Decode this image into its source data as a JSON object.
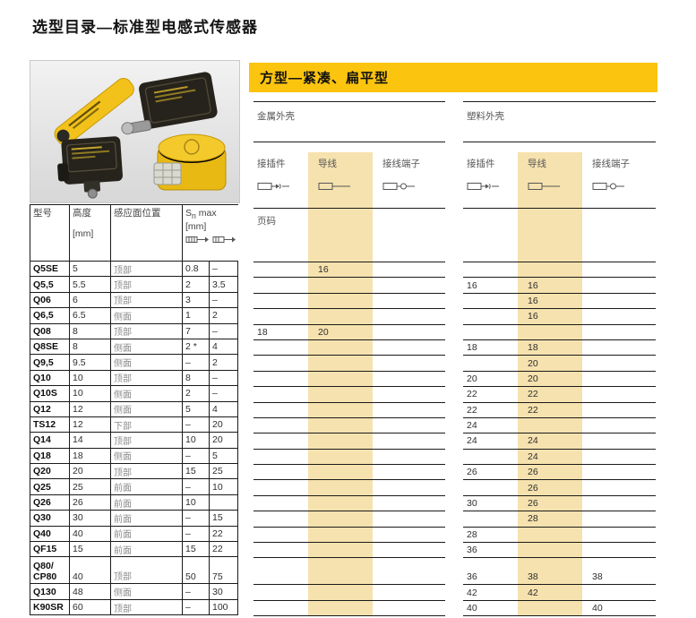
{
  "page": {
    "title": "选型目录—标准型电感式传感器"
  },
  "banner": {
    "title": "方型—紧凑、扁平型"
  },
  "photo": {
    "caption": "standard-inductive-sensors-photo"
  },
  "colors": {
    "banner_yellow": "#fbc40f",
    "band_yellow": "#f6e2ae",
    "rule_black": "#1a1a1a"
  },
  "left_table": {
    "headers": {
      "model": "型号",
      "height": "高度",
      "height_unit": "[mm]",
      "face": "感应面位置",
      "sn_prefix": "S",
      "sn_sub": "n",
      "sn_suffix": " max",
      "sn_unit": "[mm]"
    }
  },
  "right_table": {
    "metal_label": "金属外壳",
    "plastic_label": "塑料外壳",
    "page_label": "页码",
    "columns": {
      "connector": "接插件",
      "cable": "导线",
      "terminal": "接线端子"
    }
  },
  "rows": [
    {
      "model": "Q5SE",
      "height": "5",
      "face": "顶部",
      "sn1": "0.8",
      "sn2": "–",
      "m_conn": "",
      "m_cable": "16",
      "m_term": "",
      "p_conn": "",
      "p_cable": "",
      "p_term": ""
    },
    {
      "model": "Q5,5",
      "height": "5.5",
      "face": "顶部",
      "sn1": "2",
      "sn2": "3.5",
      "m_conn": "",
      "m_cable": "",
      "m_term": "",
      "p_conn": "16",
      "p_cable": "16",
      "p_term": ""
    },
    {
      "model": "Q06",
      "height": "6",
      "face": "顶部",
      "sn1": "3",
      "sn2": "–",
      "m_conn": "",
      "m_cable": "",
      "m_term": "",
      "p_conn": "",
      "p_cable": "16",
      "p_term": ""
    },
    {
      "model": "Q6,5",
      "height": "6.5",
      "face": "侧面",
      "sn1": "1",
      "sn2": "2",
      "m_conn": "",
      "m_cable": "",
      "m_term": "",
      "p_conn": "",
      "p_cable": "16",
      "p_term": ""
    },
    {
      "model": "Q08",
      "height": "8",
      "face": "顶部",
      "sn1": "7",
      "sn2": "–",
      "m_conn": "18",
      "m_cable": "20",
      "m_term": "",
      "p_conn": "",
      "p_cable": "",
      "p_term": ""
    },
    {
      "model": "Q8SE",
      "height": "8",
      "face": "侧面",
      "sn1": "2 *",
      "sn2": "4",
      "m_conn": "",
      "m_cable": "",
      "m_term": "",
      "p_conn": "18",
      "p_cable": "18",
      "p_term": ""
    },
    {
      "model": "Q9,5",
      "height": "9.5",
      "face": "侧面",
      "sn1": "–",
      "sn2": "2",
      "m_conn": "",
      "m_cable": "",
      "m_term": "",
      "p_conn": "",
      "p_cable": "20",
      "p_term": ""
    },
    {
      "model": "Q10",
      "height": "10",
      "face": "顶部",
      "sn1": "8",
      "sn2": "–",
      "m_conn": "",
      "m_cable": "",
      "m_term": "",
      "p_conn": "20",
      "p_cable": "20",
      "p_term": ""
    },
    {
      "model": "Q10S",
      "height": "10",
      "face": "侧面",
      "sn1": "2",
      "sn2": "–",
      "m_conn": "",
      "m_cable": "",
      "m_term": "",
      "p_conn": "22",
      "p_cable": "22",
      "p_term": ""
    },
    {
      "model": "Q12",
      "height": "12",
      "face": "侧面",
      "sn1": "5",
      "sn2": "4",
      "m_conn": "",
      "m_cable": "",
      "m_term": "",
      "p_conn": "22",
      "p_cable": "22",
      "p_term": ""
    },
    {
      "model": "TS12",
      "height": "12",
      "face": "下部",
      "sn1": "–",
      "sn2": "20",
      "m_conn": "",
      "m_cable": "",
      "m_term": "",
      "p_conn": "24",
      "p_cable": "",
      "p_term": ""
    },
    {
      "model": "Q14",
      "height": "14",
      "face": "顶部",
      "sn1": "10",
      "sn2": "20",
      "m_conn": "",
      "m_cable": "",
      "m_term": "",
      "p_conn": "24",
      "p_cable": "24",
      "p_term": ""
    },
    {
      "model": "Q18",
      "height": "18",
      "face": "侧面",
      "sn1": "–",
      "sn2": "5",
      "m_conn": "",
      "m_cable": "",
      "m_term": "",
      "p_conn": "",
      "p_cable": "24",
      "p_term": ""
    },
    {
      "model": "Q20",
      "height": "20",
      "face": "顶部",
      "sn1": "15",
      "sn2": "25",
      "m_conn": "",
      "m_cable": "",
      "m_term": "",
      "p_conn": "26",
      "p_cable": "26",
      "p_term": ""
    },
    {
      "model": "Q25",
      "height": "25",
      "face": "前面",
      "sn1": "–",
      "sn2": "10",
      "m_conn": "",
      "m_cable": "",
      "m_term": "",
      "p_conn": "",
      "p_cable": "26",
      "p_term": ""
    },
    {
      "model": "Q26",
      "height": "26",
      "face": "前面",
      "sn1": "10",
      "sn2": "",
      "m_conn": "",
      "m_cable": "",
      "m_term": "",
      "p_conn": "30",
      "p_cable": "26",
      "p_term": ""
    },
    {
      "model": "Q30",
      "height": "30",
      "face": "前面",
      "sn1": "–",
      "sn2": "15",
      "m_conn": "",
      "m_cable": "",
      "m_term": "",
      "p_conn": "",
      "p_cable": "28",
      "p_term": ""
    },
    {
      "model": "Q40",
      "height": "40",
      "face": "前面",
      "sn1": "–",
      "sn2": "22",
      "m_conn": "",
      "m_cable": "",
      "m_term": "",
      "p_conn": "28",
      "p_cable": "",
      "p_term": ""
    },
    {
      "model": "QF15",
      "height": "15",
      "face": "前面",
      "sn1": "15",
      "sn2": "22",
      "m_conn": "",
      "m_cable": "",
      "m_term": "",
      "p_conn": "36",
      "p_cable": "",
      "p_term": ""
    },
    {
      "model": "Q80/\nCP80",
      "height": "40",
      "face": "顶部",
      "sn1": "50",
      "sn2": "75",
      "m_conn": "",
      "m_cable": "",
      "m_term": "",
      "p_conn": "36",
      "p_cable": "38",
      "p_term": "38",
      "tall": true
    },
    {
      "model": "Q130",
      "height": "48",
      "face": "侧面",
      "sn1": "–",
      "sn2": "30",
      "m_conn": "",
      "m_cable": "",
      "m_term": "",
      "p_conn": "42",
      "p_cable": "42",
      "p_term": ""
    },
    {
      "model": "K90SR",
      "height": "60",
      "face": "顶部",
      "sn1": "–",
      "sn2": "100",
      "m_conn": "",
      "m_cable": "",
      "m_term": "",
      "p_conn": "40",
      "p_cable": "",
      "p_term": "40"
    }
  ]
}
